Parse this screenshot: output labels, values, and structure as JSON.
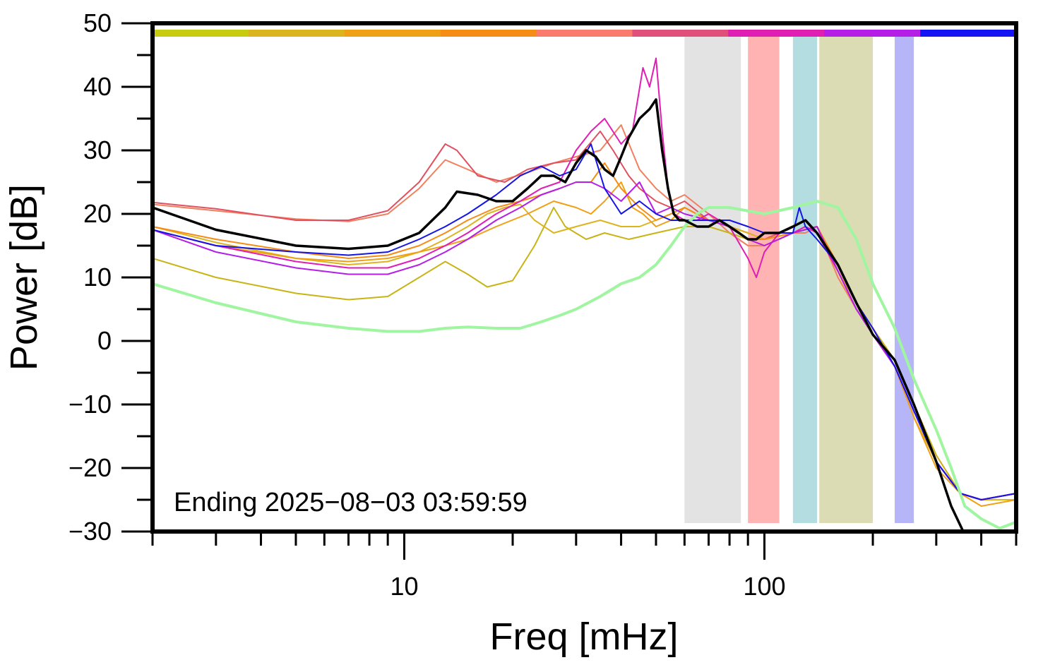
{
  "chart_data": {
    "type": "line",
    "xlabel": "Freq [mHz]",
    "ylabel": "Power [dB]",
    "x_scale": "log",
    "xlim": [
      2,
      500
    ],
    "ylim": [
      -30,
      50
    ],
    "x_tick_labels": [
      {
        "value": 10,
        "label": "10"
      },
      {
        "value": 100,
        "label": "100"
      }
    ],
    "y_tick_labels": [
      {
        "value": 50,
        "label": "50"
      },
      {
        "value": 40,
        "label": "40"
      },
      {
        "value": 30,
        "label": "30"
      },
      {
        "value": 20,
        "label": "20"
      },
      {
        "value": 10,
        "label": "10"
      },
      {
        "value": 0,
        "label": "0"
      },
      {
        "value": -10,
        "label": "−10"
      },
      {
        "value": -20,
        "label": "−20"
      },
      {
        "value": -30,
        "label": "−30"
      }
    ],
    "grid": false,
    "annotation": "Ending 2025−08−03 03:59:59",
    "bands": [
      {
        "x0": 60,
        "x1": 86,
        "color": "#e3e3e3"
      },
      {
        "x0": 90,
        "x1": 110,
        "color": "#ffb3b3"
      },
      {
        "x0": 120,
        "x1": 140,
        "color": "#b3dde0"
      },
      {
        "x0": 142,
        "x1": 200,
        "color": "#dcdcb4"
      },
      {
        "x0": 230,
        "x1": 260,
        "color": "#b5b5f8"
      }
    ],
    "color_bar": [
      "#c8cc10",
      "#dcb41e",
      "#f0a014",
      "#f58c14",
      "#fa7b6b",
      "#e0507a",
      "#e01eb4",
      "#b41ee6",
      "#1414f5"
    ],
    "series": [
      {
        "color": "#f08060",
        "width": 2,
        "x": [
          2,
          3,
          5,
          7,
          9,
          11,
          13,
          15,
          18,
          22,
          26,
          30,
          35,
          40,
          45,
          50,
          55,
          60,
          70,
          80,
          90,
          100,
          110,
          120,
          130,
          140,
          160,
          180,
          200,
          230,
          260,
          300,
          350,
          400,
          500
        ],
        "y": [
          21.5,
          20.5,
          19.2,
          18.8,
          20,
          24,
          28.5,
          27,
          25,
          26.5,
          28,
          29,
          30,
          34,
          27,
          24,
          22,
          23,
          20,
          17,
          15,
          15,
          16,
          17,
          17,
          18,
          10,
          5,
          1,
          -3,
          -10,
          -18,
          -24,
          -25,
          -24
        ]
      },
      {
        "color": "#e05060",
        "width": 2,
        "x": [
          2,
          3,
          5,
          7,
          9,
          11,
          13,
          14,
          16,
          19,
          22,
          26,
          30,
          35,
          38,
          42,
          45,
          50,
          55,
          60,
          70,
          80,
          90,
          100,
          110,
          120,
          130,
          140,
          160,
          180,
          200,
          230,
          260,
          300,
          350,
          400,
          500
        ],
        "y": [
          21.8,
          20.8,
          19,
          19,
          20.5,
          25,
          31,
          30,
          26,
          25,
          27,
          28,
          28.5,
          33,
          30,
          26,
          24,
          22,
          21,
          22,
          19,
          18,
          17,
          16,
          17,
          17,
          18,
          17,
          11,
          5,
          1,
          -4,
          -11,
          -19,
          -24,
          -25,
          -24
        ]
      },
      {
        "color": "#c8b414",
        "width": 2,
        "x": [
          2,
          3,
          5,
          7,
          9,
          11,
          13,
          15,
          17,
          20,
          23,
          26,
          28,
          32,
          36,
          42,
          50,
          60,
          70,
          80,
          90,
          100,
          120,
          140,
          160,
          180,
          200,
          230,
          260,
          300,
          350,
          400,
          500
        ],
        "y": [
          13,
          10,
          7.5,
          6.5,
          7,
          10,
          12.5,
          10.5,
          8.5,
          9.5,
          15,
          21,
          18,
          16,
          17,
          16,
          17,
          18,
          18,
          17,
          16,
          16,
          17,
          18,
          12,
          6,
          2,
          -3,
          -10,
          -18,
          -24,
          -25,
          -24
        ]
      },
      {
        "color": "#dcb41e",
        "width": 2,
        "x": [
          2,
          3,
          5,
          7,
          9,
          11,
          13,
          15,
          17,
          19,
          21,
          23,
          26,
          30,
          35,
          40,
          45,
          50,
          55,
          60,
          70,
          80,
          90,
          100,
          120,
          140,
          160,
          180,
          200,
          230,
          260,
          300,
          350,
          400,
          500
        ],
        "y": [
          18,
          15.5,
          13,
          12,
          12.5,
          14,
          16,
          18,
          20,
          21,
          21.5,
          19,
          17,
          18,
          19,
          18,
          18,
          19,
          20,
          21,
          19,
          18,
          17,
          16,
          17,
          18,
          11,
          6,
          1,
          -4,
          -12,
          -19,
          -24,
          -25,
          -25
        ]
      },
      {
        "color": "#f0a014",
        "width": 2,
        "x": [
          2,
          3,
          5,
          7,
          9,
          11,
          13,
          15,
          18,
          22,
          26,
          30,
          33,
          36,
          40,
          43,
          46,
          50,
          55,
          60,
          70,
          80,
          90,
          100,
          120,
          140,
          160,
          180,
          200,
          230,
          260,
          300,
          350,
          400,
          500
        ],
        "y": [
          17.5,
          15,
          13,
          12.5,
          13,
          14,
          15,
          16,
          18,
          20,
          22,
          21,
          20,
          22,
          25,
          21,
          20,
          18,
          19,
          21,
          19,
          18,
          16,
          15,
          17,
          18,
          12,
          6,
          2,
          -4,
          -12,
          -20,
          -24,
          -26,
          -25
        ]
      },
      {
        "color": "#f58c14",
        "width": 2,
        "x": [
          2,
          3,
          5,
          7,
          9,
          11,
          13,
          15,
          18,
          21,
          24,
          27,
          30,
          33,
          36,
          40,
          45,
          50,
          55,
          60,
          70,
          80,
          90,
          100,
          120,
          140,
          160,
          180,
          200,
          230,
          260,
          300,
          350,
          400,
          500
        ],
        "y": [
          18,
          16,
          14,
          13,
          13.5,
          15,
          17,
          19,
          21,
          22,
          23,
          24,
          25,
          25,
          28,
          24,
          21,
          19,
          20,
          21,
          19,
          18,
          16,
          16,
          17,
          18,
          12,
          6,
          2,
          -4,
          -11,
          -19,
          -24,
          -25,
          -24
        ]
      },
      {
        "color": "#e01eb4",
        "width": 2,
        "x": [
          2,
          3,
          5,
          7,
          9,
          11,
          13,
          15,
          18,
          21,
          24,
          27,
          30,
          33,
          36,
          40,
          43,
          46,
          48,
          50,
          52,
          54,
          56,
          60,
          65,
          70,
          80,
          90,
          95,
          100,
          110,
          120,
          130,
          140,
          160,
          180,
          200,
          230,
          260,
          300,
          350,
          400,
          500
        ],
        "y": [
          17.5,
          15,
          12.5,
          11.5,
          11.5,
          13,
          15,
          17,
          20,
          22,
          24,
          25,
          30,
          33,
          35,
          31,
          33,
          43,
          40,
          44.5,
          33,
          24,
          20,
          19,
          19,
          20,
          18,
          13,
          10,
          14,
          17,
          17,
          18,
          17,
          11,
          5,
          1,
          -4,
          -11,
          -19,
          -24,
          -25,
          -24
        ]
      },
      {
        "color": "#b41ee6",
        "width": 2,
        "x": [
          2,
          3,
          5,
          7,
          9,
          11,
          13,
          15,
          18,
          21,
          24,
          27,
          30,
          33,
          36,
          40,
          45,
          50,
          55,
          60,
          70,
          80,
          90,
          100,
          120,
          140,
          160,
          180,
          200,
          230,
          260,
          300,
          350,
          400,
          500
        ],
        "y": [
          17.5,
          14,
          11.5,
          10.5,
          10.5,
          12,
          14,
          16,
          19,
          21,
          23,
          24,
          25,
          25,
          24,
          22,
          25,
          20,
          21,
          20,
          19,
          18,
          16,
          15,
          17,
          18,
          11,
          5,
          1,
          -4,
          -11,
          -19,
          -24,
          -25,
          -24
        ]
      },
      {
        "color": "#1414e6",
        "width": 2,
        "x": [
          2,
          3,
          5,
          7,
          9,
          11,
          13,
          15,
          18,
          21,
          24,
          27,
          30,
          33,
          36,
          40,
          45,
          50,
          55,
          60,
          70,
          80,
          90,
          100,
          120,
          125,
          130,
          140,
          160,
          180,
          200,
          230,
          260,
          300,
          350,
          400,
          500
        ],
        "y": [
          17.5,
          15,
          14,
          13.5,
          14,
          16,
          18,
          20,
          23,
          26,
          27.5,
          26,
          27,
          31,
          24,
          20,
          22,
          20,
          19,
          19,
          19,
          19,
          18,
          17,
          17,
          21,
          18,
          16,
          12,
          6,
          2,
          -4,
          -11,
          -19,
          -24,
          -25,
          -24
        ]
      },
      {
        "color": "#a0f5a0",
        "width": 4,
        "x": [
          2,
          3,
          5,
          7,
          9,
          11,
          13,
          15,
          18,
          21,
          24,
          27,
          30,
          35,
          40,
          45,
          50,
          55,
          60,
          65,
          70,
          80,
          100,
          120,
          140,
          160,
          180,
          200,
          230,
          260,
          300,
          330,
          360,
          400,
          450,
          500
        ],
        "y": [
          9,
          6,
          3,
          2,
          1.5,
          1.5,
          2,
          2.2,
          2,
          2,
          3,
          4,
          5,
          7,
          9,
          10,
          12,
          15,
          18,
          20,
          21,
          21,
          20,
          21,
          22,
          21,
          16,
          9,
          2,
          -6,
          -14,
          -20,
          -26,
          -28,
          -29.5,
          -28.5
        ]
      },
      {
        "color": "#000000",
        "width": 3.5,
        "x": [
          2,
          3,
          5,
          7,
          9,
          11,
          13,
          14,
          16,
          18,
          20,
          22,
          24,
          26,
          28,
          30,
          32,
          34,
          36,
          38,
          40,
          42,
          45,
          48,
          50,
          52,
          54,
          56,
          58,
          60,
          65,
          70,
          75,
          80,
          85,
          90,
          95,
          100,
          110,
          120,
          130,
          140,
          160,
          180,
          200,
          230,
          260,
          300,
          330,
          360
        ],
        "y": [
          21,
          17.5,
          15,
          14.5,
          15,
          17,
          21,
          23.5,
          23,
          22,
          22,
          24,
          26,
          26,
          25,
          28,
          30,
          29,
          27,
          26,
          29,
          32,
          35,
          36.5,
          38,
          30,
          24,
          20,
          19,
          19,
          18,
          18,
          19,
          18,
          17,
          16,
          16,
          17,
          17,
          18,
          19,
          17,
          12,
          6,
          1,
          -3,
          -10,
          -19,
          -26,
          -30.5
        ]
      }
    ]
  }
}
